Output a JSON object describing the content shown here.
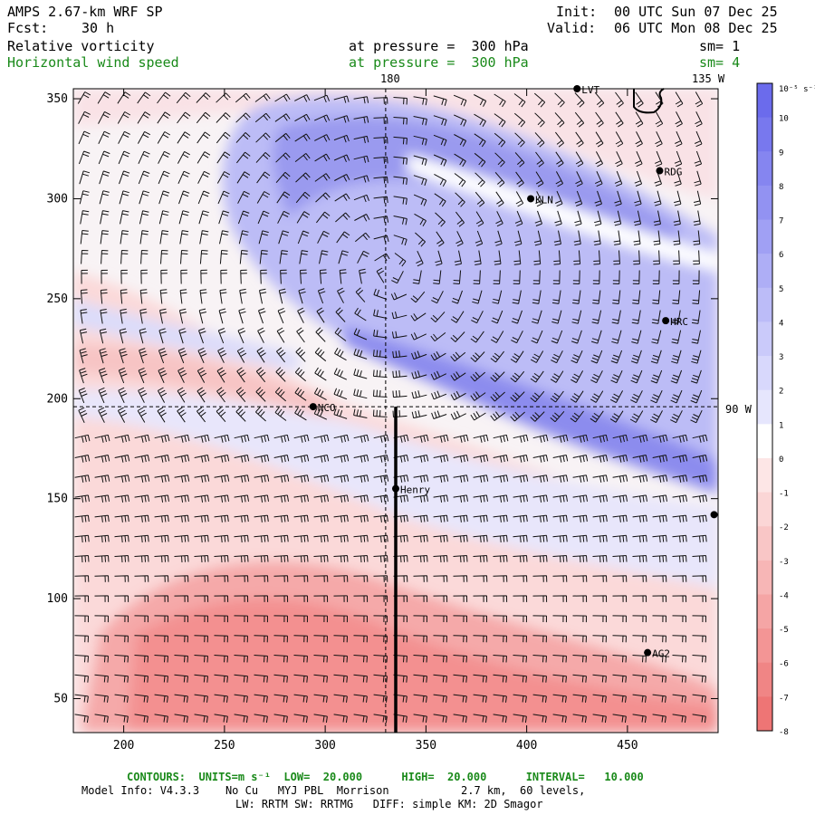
{
  "header": {
    "model": "AMPS 2.67-km WRF SP",
    "fcst_label": "Fcst:",
    "fcst_value": "30 h",
    "init_label": "Init:",
    "init_value": "00 UTC Sun 07 Dec 25",
    "valid_label": "Valid:",
    "valid_value": "06 UTC Mon 08 Dec 25",
    "field1_name": "Relative vorticity",
    "field1_level": "at pressure =  300 hPa",
    "field1_sm": "sm= 1",
    "field2_name": "Horizontal wind speed",
    "field2_level": "at pressure =  300 hPa",
    "field2_sm": "sm= 4"
  },
  "map": {
    "meridian_180_label": "180",
    "meridian_135w_label": "135 W",
    "lat_90w_label": "90 W",
    "stations": [
      {
        "name": "LVT",
        "x": 425,
        "y": 355
      },
      {
        "name": "RDG",
        "x": 466,
        "y": 314
      },
      {
        "name": "KLN",
        "x": 402,
        "y": 300
      },
      {
        "name": "HRC",
        "x": 469,
        "y": 239
      },
      {
        "name": "NCO",
        "x": 294,
        "y": 196
      },
      {
        "name": "Henry",
        "x": 335,
        "y": 155
      },
      {
        "name": "",
        "x": 493,
        "y": 142
      },
      {
        "name": "AG2",
        "x": 460,
        "y": 73
      }
    ]
  },
  "chart_data": {
    "type": "heatmap",
    "title": "Relative vorticity at pressure = 300 hPa",
    "xlim": [
      175,
      495
    ],
    "ylim": [
      33,
      355
    ],
    "x_ticks": [
      200,
      250,
      300,
      350,
      400,
      450
    ],
    "y_ticks": [
      50,
      100,
      150,
      200,
      250,
      300,
      350
    ],
    "colorbar": {
      "unit_label": "10⁻⁵ s⁻¹",
      "levels": [
        10,
        9,
        8,
        7,
        6,
        5,
        4,
        3,
        2,
        1,
        0,
        -1,
        -2,
        -3,
        -4,
        -5,
        -6,
        -7,
        -8
      ],
      "colors": [
        "#6b6bec",
        "#7878ee",
        "#8585f0",
        "#9292f2",
        "#a0a0f4",
        "#aeaef6",
        "#bcbcf8",
        "#cacafa",
        "#d8d8fc",
        "#e6e6fd",
        "#ffffff",
        "#fde6e6",
        "#fbd6d6",
        "#f9c6c6",
        "#f7b6b6",
        "#f5a5a5",
        "#f39595",
        "#f08585",
        "#ee7575"
      ]
    },
    "cross_section": {
      "x": 335,
      "y_from": 33,
      "y_to": 196
    },
    "reference_lines": {
      "vertical_x": 330,
      "horizontal_y": 196
    },
    "overlay": "Horizontal wind speed (wind barbs)"
  },
  "footer": {
    "contours": "CONTOURS:  UNITS=m s⁻¹  LOW=  20.000      HIGH=  20.000      INTERVAL=   10.000",
    "model_info": "Model Info: V4.3.3    No Cu   MYJ PBL  Morrison           2.7 km,  60 levels,",
    "physics": "LW: RRTM SW: RRTMG   DIFF: simple KM: 2D Smagor"
  }
}
